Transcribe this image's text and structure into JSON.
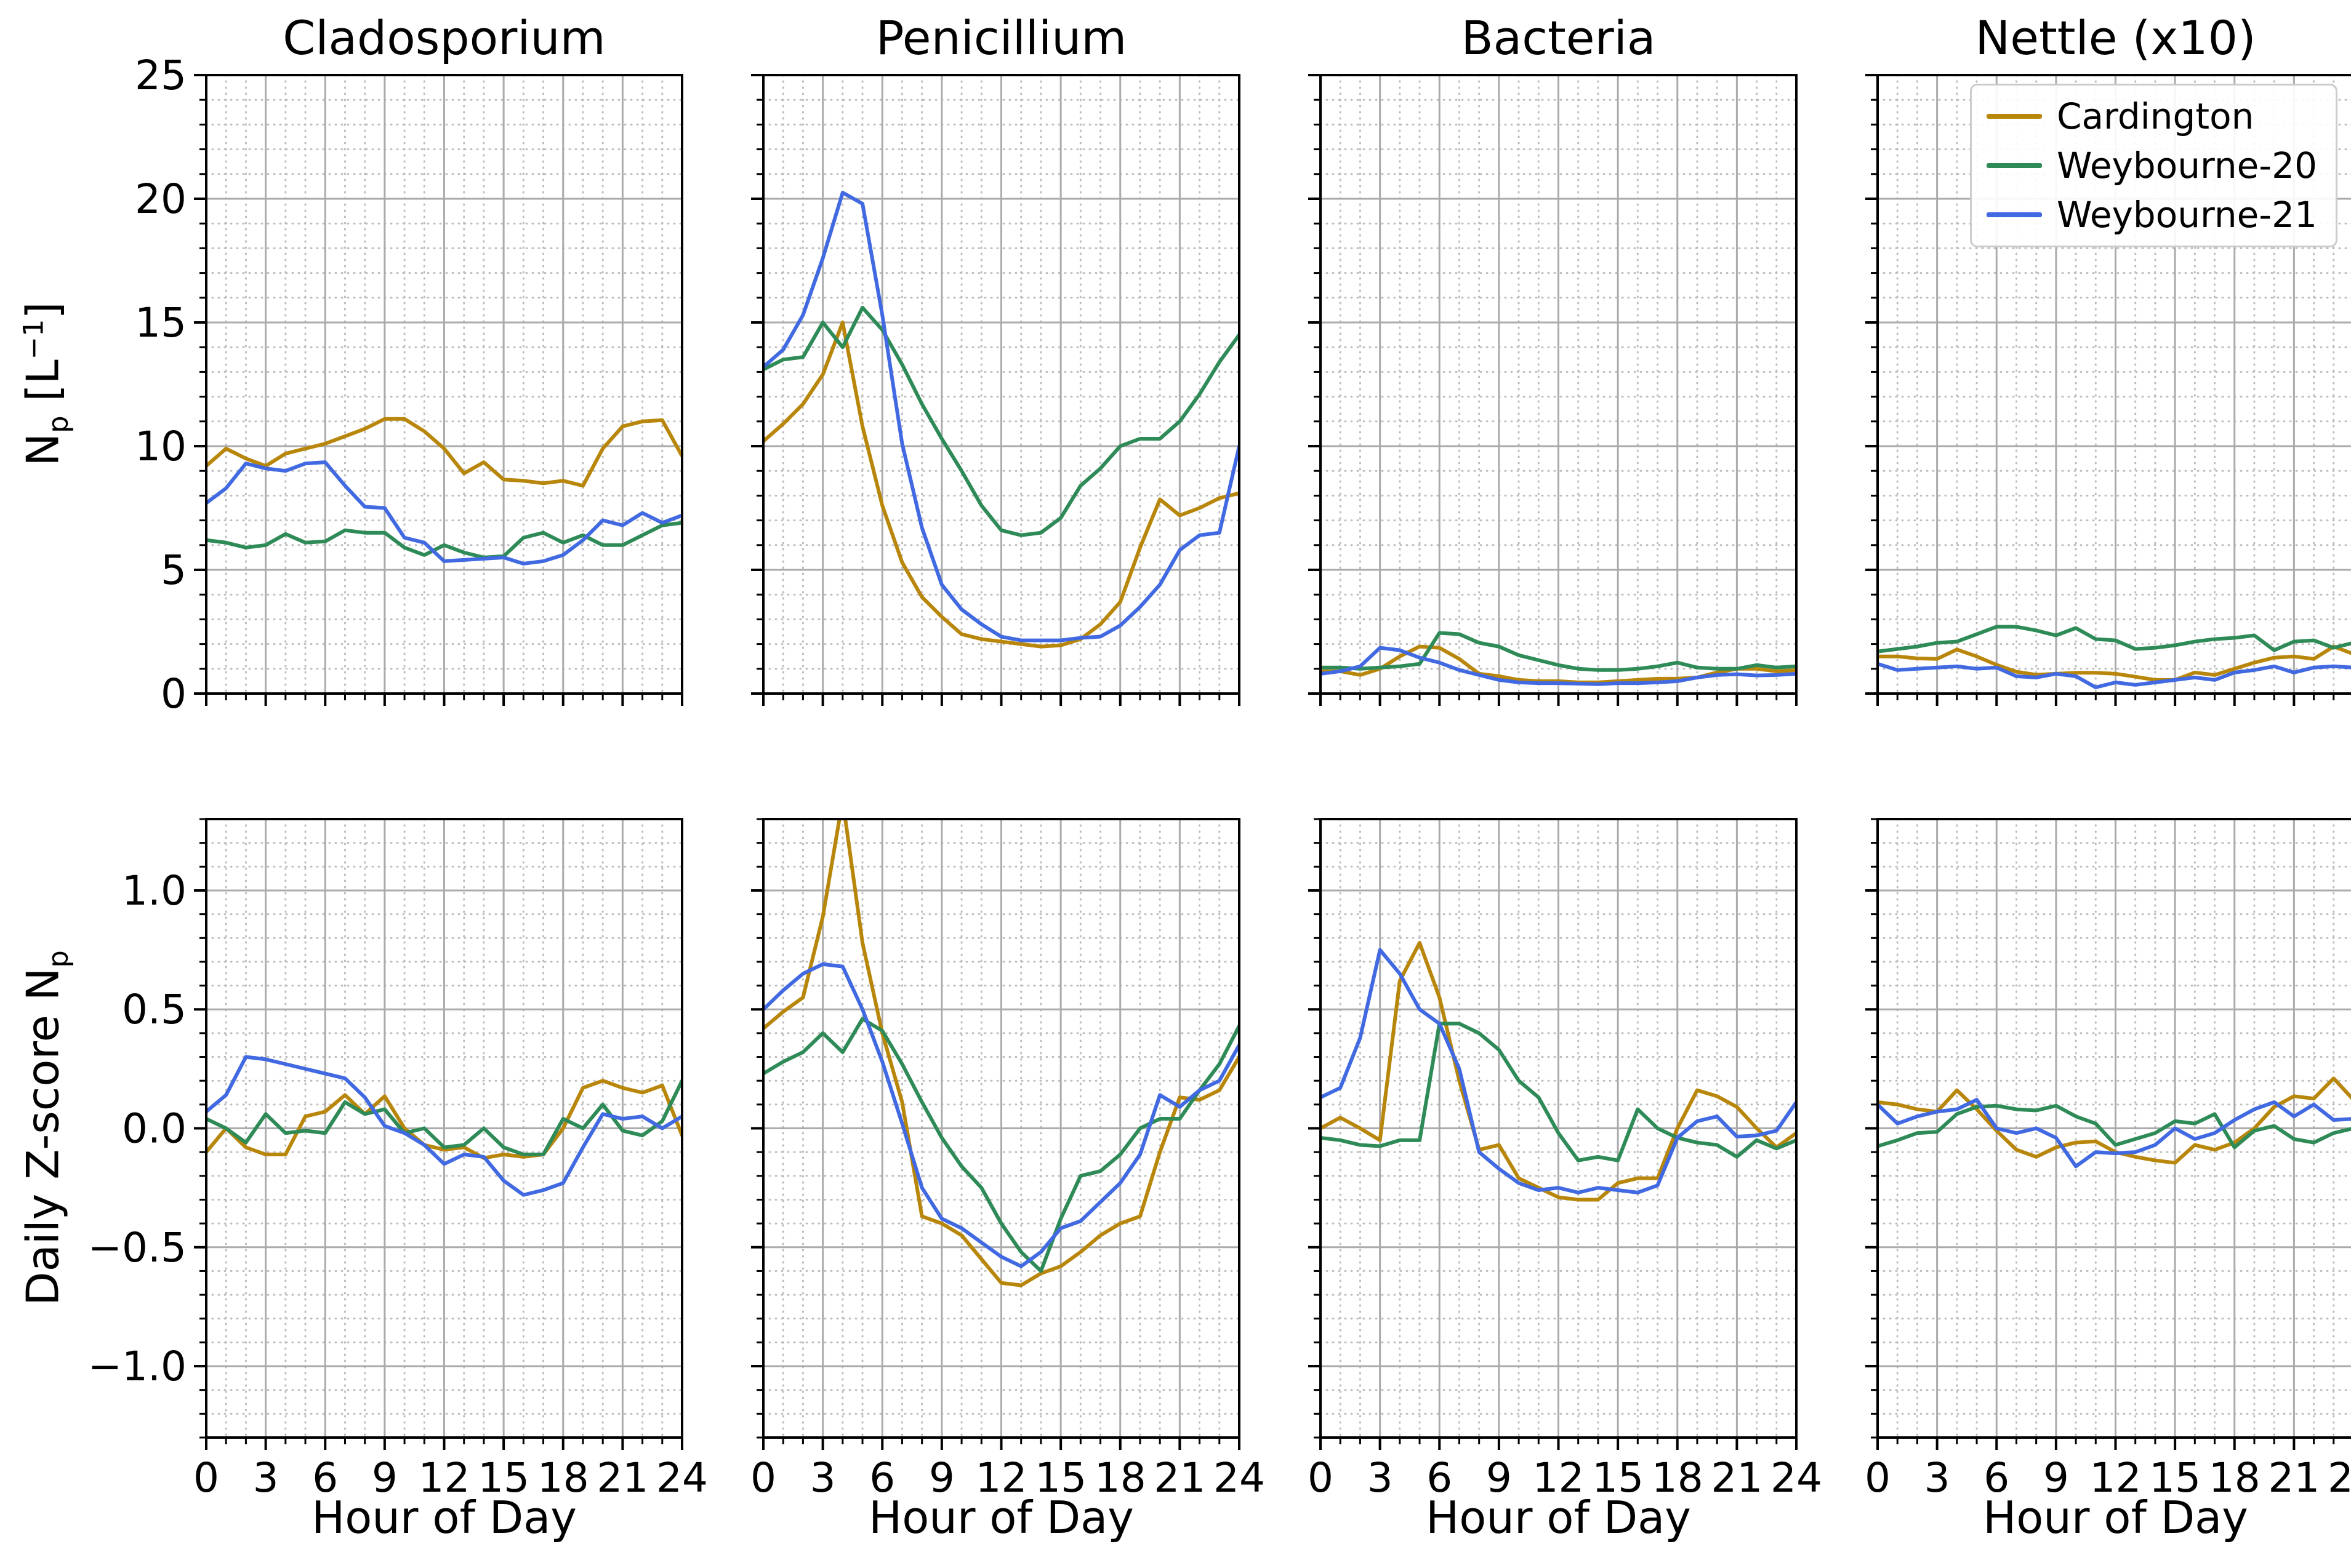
{
  "figure": {
    "kind": "matplotlib-style line chart grid, 2 rows x 4 columns"
  },
  "chart_data": {
    "type": "line",
    "grid": "major solid + minor dotted, both axes",
    "legend_position": "upper right of Nettle (x10) top panel",
    "x": {
      "label": "Hour of Day",
      "min": 0,
      "max": 24,
      "hours": [
        0,
        1,
        2,
        3,
        4,
        5,
        6,
        7,
        8,
        9,
        10,
        11,
        12,
        13,
        14,
        15,
        16,
        17,
        18,
        19,
        20,
        21,
        22,
        23,
        24
      ],
      "major_ticks": [
        0,
        3,
        6,
        9,
        12,
        15,
        18,
        21,
        24
      ],
      "tick_labels": [
        "0",
        "3",
        "6",
        "9",
        "12",
        "15",
        "18",
        "21",
        "24"
      ],
      "minor_step": 1
    },
    "rows": [
      {
        "ylabel_text": "Np [L-1]",
        "ylabel_parts": {
          "pre": "N",
          "sub": "p",
          "mid": " [L",
          "sup": "−1",
          "end": "]"
        },
        "ylim": [
          0,
          25
        ],
        "ytick_values": [
          0,
          5,
          10,
          15,
          20,
          25
        ],
        "ytick_labels": [
          "0",
          "5",
          "10",
          "15",
          "20",
          "25"
        ],
        "minor_step": 1
      },
      {
        "ylabel_text": "Daily Z-score Np",
        "ylabel_parts": {
          "pre": "Daily Z-score N",
          "sub": "p"
        },
        "ylim": [
          -1.3,
          1.3
        ],
        "ytick_values": [
          -1.0,
          -0.5,
          0.0,
          0.5,
          1.0
        ],
        "ytick_labels": [
          "−1.0",
          "−0.5",
          "0.0",
          "0.5",
          "1.0"
        ],
        "minor_step": 0.1
      }
    ],
    "columns": [
      "Cladosporium",
      "Penicillium",
      "Bacteria",
      "Nettle (x10)"
    ],
    "series": [
      {
        "key": "cardington",
        "name": "Cardington",
        "color": "#B8860B"
      },
      {
        "key": "weybourne20",
        "name": "Weybourne-20",
        "color": "#2E8B57"
      },
      {
        "key": "weybourne21",
        "name": "Weybourne-21",
        "color": "#4169E1"
      }
    ],
    "panels": [
      {
        "id": "cladosporium_np",
        "row": 0,
        "col": 0,
        "cardington": [
          9.2,
          9.9,
          9.5,
          9.2,
          9.7,
          9.9,
          10.1,
          10.4,
          10.7,
          11.1,
          11.1,
          10.6,
          9.9,
          8.9,
          9.35,
          8.65,
          8.6,
          8.5,
          8.6,
          8.4,
          9.9,
          10.8,
          11.0,
          11.05,
          9.6
        ],
        "weybourne20": [
          6.2,
          6.1,
          5.9,
          6.0,
          6.45,
          6.1,
          6.15,
          6.6,
          6.5,
          6.5,
          5.9,
          5.6,
          6.0,
          5.7,
          5.5,
          5.55,
          6.3,
          6.5,
          6.1,
          6.4,
          6.0,
          6.0,
          6.4,
          6.8,
          6.9
        ],
        "weybourne21": [
          7.7,
          8.3,
          9.3,
          9.1,
          9.0,
          9.3,
          9.35,
          8.4,
          7.55,
          7.5,
          6.3,
          6.1,
          5.35,
          5.4,
          5.45,
          5.5,
          5.25,
          5.35,
          5.6,
          6.2,
          7.0,
          6.8,
          7.3,
          6.9,
          7.2
        ]
      },
      {
        "id": "penicillium_np",
        "row": 0,
        "col": 1,
        "cardington": [
          10.2,
          10.9,
          11.7,
          12.9,
          15.0,
          10.8,
          7.6,
          5.3,
          3.9,
          3.1,
          2.4,
          2.2,
          2.1,
          2.0,
          1.9,
          1.95,
          2.2,
          2.8,
          3.7,
          5.9,
          7.85,
          7.2,
          7.5,
          7.9,
          8.1
        ],
        "weybourne20": [
          13.1,
          13.5,
          13.6,
          15.0,
          14.0,
          15.6,
          14.7,
          13.3,
          11.7,
          10.3,
          9.0,
          7.6,
          6.6,
          6.4,
          6.5,
          7.1,
          8.4,
          9.1,
          10.0,
          10.3,
          10.3,
          11.0,
          12.1,
          13.4,
          14.5
        ],
        "weybourne21": [
          13.2,
          13.9,
          15.3,
          17.6,
          20.25,
          19.8,
          15.3,
          10.1,
          6.7,
          4.4,
          3.4,
          2.8,
          2.3,
          2.15,
          2.15,
          2.15,
          2.25,
          2.3,
          2.75,
          3.5,
          4.4,
          5.8,
          6.4,
          6.5,
          10.0
        ]
      },
      {
        "id": "bacteria_np",
        "row": 0,
        "col": 2,
        "cardington": [
          0.9,
          0.9,
          0.75,
          1.0,
          1.5,
          1.9,
          1.85,
          1.4,
          0.8,
          0.7,
          0.55,
          0.5,
          0.5,
          0.45,
          0.45,
          0.5,
          0.55,
          0.6,
          0.6,
          0.65,
          0.85,
          1.0,
          1.0,
          0.9,
          0.95
        ],
        "weybourne20": [
          1.05,
          1.05,
          1.0,
          1.05,
          1.1,
          1.2,
          2.45,
          2.4,
          2.05,
          1.9,
          1.55,
          1.35,
          1.15,
          1.0,
          0.95,
          0.95,
          1.0,
          1.1,
          1.25,
          1.05,
          1.0,
          1.0,
          1.15,
          1.05,
          1.1
        ],
        "weybourne21": [
          0.8,
          0.9,
          1.1,
          1.85,
          1.75,
          1.45,
          1.25,
          0.95,
          0.75,
          0.55,
          0.45,
          0.42,
          0.42,
          0.4,
          0.38,
          0.42,
          0.42,
          0.45,
          0.5,
          0.65,
          0.75,
          0.78,
          0.73,
          0.75,
          0.8
        ]
      },
      {
        "id": "nettle_np",
        "row": 0,
        "col": 3,
        "cardington": [
          1.5,
          1.5,
          1.42,
          1.4,
          1.78,
          1.5,
          1.16,
          0.88,
          0.76,
          0.8,
          0.84,
          0.84,
          0.8,
          0.68,
          0.55,
          0.55,
          0.85,
          0.75,
          1.0,
          1.25,
          1.45,
          1.5,
          1.4,
          1.9,
          1.6
        ],
        "weybourne20": [
          1.7,
          1.8,
          1.9,
          2.05,
          2.1,
          2.4,
          2.7,
          2.7,
          2.55,
          2.35,
          2.65,
          2.2,
          2.15,
          1.8,
          1.85,
          1.95,
          2.1,
          2.2,
          2.25,
          2.35,
          1.75,
          2.1,
          2.15,
          1.85,
          2.05
        ],
        "weybourne21": [
          1.2,
          0.95,
          1.0,
          1.05,
          1.1,
          1.0,
          1.05,
          0.7,
          0.65,
          0.8,
          0.7,
          0.25,
          0.45,
          0.35,
          0.45,
          0.55,
          0.65,
          0.55,
          0.85,
          0.95,
          1.1,
          0.85,
          1.05,
          1.1,
          1.05
        ]
      },
      {
        "id": "cladosporium_zscore",
        "row": 1,
        "col": 0,
        "cardington": [
          -0.1,
          0.0,
          -0.08,
          -0.11,
          -0.11,
          0.05,
          0.07,
          0.14,
          0.06,
          0.135,
          0.0,
          -0.07,
          -0.09,
          -0.08,
          -0.125,
          -0.11,
          -0.12,
          -0.11,
          0.0,
          0.17,
          0.2,
          0.17,
          0.15,
          0.18,
          -0.03
        ],
        "weybourne20": [
          0.04,
          0.0,
          -0.06,
          0.06,
          -0.02,
          -0.01,
          -0.02,
          0.11,
          0.06,
          0.08,
          -0.02,
          0.0,
          -0.08,
          -0.07,
          0.0,
          -0.08,
          -0.11,
          -0.11,
          0.04,
          0.0,
          0.1,
          -0.01,
          -0.03,
          0.03,
          0.2
        ],
        "weybourne21": [
          0.07,
          0.14,
          0.3,
          0.29,
          0.27,
          0.25,
          0.23,
          0.21,
          0.13,
          0.01,
          -0.02,
          -0.07,
          -0.15,
          -0.11,
          -0.12,
          -0.22,
          -0.28,
          -0.26,
          -0.23,
          -0.08,
          0.06,
          0.04,
          0.05,
          0.0,
          0.05
        ]
      },
      {
        "id": "penicillium_zscore",
        "row": 1,
        "col": 1,
        "cardington": [
          0.42,
          0.49,
          0.55,
          0.89,
          1.38,
          0.78,
          0.4,
          0.11,
          -0.37,
          -0.4,
          -0.45,
          -0.55,
          -0.65,
          -0.66,
          -0.61,
          -0.58,
          -0.52,
          -0.45,
          -0.4,
          -0.37,
          -0.1,
          0.13,
          0.12,
          0.16,
          0.3
        ],
        "weybourne20": [
          0.23,
          0.28,
          0.32,
          0.4,
          0.32,
          0.46,
          0.41,
          0.27,
          0.11,
          -0.04,
          -0.16,
          -0.25,
          -0.4,
          -0.52,
          -0.6,
          -0.38,
          -0.2,
          -0.18,
          -0.11,
          0.0,
          0.04,
          0.04,
          0.16,
          0.27,
          0.43
        ],
        "weybourne21": [
          0.5,
          0.58,
          0.65,
          0.69,
          0.68,
          0.5,
          0.28,
          0.02,
          -0.25,
          -0.38,
          -0.42,
          -0.48,
          -0.54,
          -0.58,
          -0.52,
          -0.42,
          -0.39,
          -0.31,
          -0.23,
          -0.11,
          0.14,
          0.09,
          0.16,
          0.2,
          0.35
        ]
      },
      {
        "id": "bacteria_zscore",
        "row": 1,
        "col": 2,
        "cardington": [
          0.0,
          0.045,
          0.0,
          -0.05,
          0.62,
          0.78,
          0.55,
          0.2,
          -0.09,
          -0.07,
          -0.21,
          -0.25,
          -0.29,
          -0.3,
          -0.3,
          -0.23,
          -0.21,
          -0.21,
          0.0,
          0.16,
          0.135,
          0.09,
          0.0,
          -0.08,
          -0.02
        ],
        "weybourne20": [
          -0.04,
          -0.05,
          -0.07,
          -0.075,
          -0.05,
          -0.05,
          0.44,
          0.44,
          0.4,
          0.33,
          0.2,
          0.13,
          -0.02,
          -0.135,
          -0.12,
          -0.135,
          0.08,
          0.0,
          -0.04,
          -0.06,
          -0.07,
          -0.12,
          -0.05,
          -0.085,
          -0.05
        ],
        "weybourne21": [
          0.13,
          0.17,
          0.38,
          0.75,
          0.65,
          0.5,
          0.44,
          0.25,
          -0.1,
          -0.17,
          -0.23,
          -0.26,
          -0.25,
          -0.27,
          -0.25,
          -0.26,
          -0.27,
          -0.24,
          -0.04,
          0.03,
          0.05,
          -0.035,
          -0.03,
          -0.01,
          0.11
        ]
      },
      {
        "id": "nettle_zscore",
        "row": 1,
        "col": 3,
        "cardington": [
          0.11,
          0.1,
          0.08,
          0.07,
          0.16,
          0.08,
          -0.01,
          -0.09,
          -0.12,
          -0.08,
          -0.06,
          -0.055,
          -0.1,
          -0.12,
          -0.135,
          -0.145,
          -0.07,
          -0.09,
          -0.06,
          0.0,
          0.09,
          0.135,
          0.125,
          0.21,
          0.12
        ],
        "weybourne20": [
          -0.075,
          -0.05,
          -0.02,
          -0.015,
          0.06,
          0.09,
          0.095,
          0.08,
          0.075,
          0.095,
          0.05,
          0.02,
          -0.07,
          -0.045,
          -0.02,
          0.03,
          0.02,
          0.06,
          -0.08,
          -0.01,
          0.01,
          -0.045,
          -0.06,
          -0.02,
          0.0
        ],
        "weybourne21": [
          0.1,
          0.02,
          0.05,
          0.07,
          0.08,
          0.12,
          0.0,
          -0.02,
          0.0,
          -0.04,
          -0.16,
          -0.1,
          -0.105,
          -0.1,
          -0.07,
          0.0,
          -0.045,
          -0.02,
          0.035,
          0.08,
          0.11,
          0.05,
          0.1,
          0.035,
          0.04
        ]
      }
    ]
  }
}
